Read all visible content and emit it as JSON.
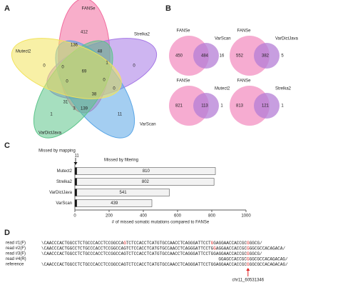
{
  "panel_labels": [
    "A",
    "B",
    "C",
    "D"
  ],
  "chart_data": [
    {
      "type": "venn",
      "sets": [
        {
          "name": "FANSe",
          "color": "#f26b9e"
        },
        {
          "name": "Strelka2",
          "color": "#a678e6"
        },
        {
          "name": "VarScan",
          "color": "#5aa6e6"
        },
        {
          "name": "VarDictJava",
          "color": "#5cc48a"
        },
        {
          "name": "Mutect2",
          "color": "#f2e35c"
        }
      ],
      "values": [
        412,
        136,
        48,
        0,
        0,
        1,
        0,
        0,
        0,
        69,
        38,
        31,
        3,
        139,
        1,
        11,
        0
      ]
    },
    {
      "type": "venn",
      "sets": [
        {
          "name": "FANSe",
          "color": "#f5a3cc"
        },
        {
          "name": "VarScan",
          "color": "#b47ed6"
        }
      ],
      "values": [
        450,
        484,
        16
      ]
    },
    {
      "type": "venn",
      "sets": [
        {
          "name": "FANSe",
          "color": "#f5a3cc"
        },
        {
          "name": "VarDictJava",
          "color": "#b47ed6"
        }
      ],
      "values": [
        552,
        382,
        5
      ]
    },
    {
      "type": "venn",
      "sets": [
        {
          "name": "FANSe",
          "color": "#f5a3cc"
        },
        {
          "name": "Mutect2",
          "color": "#b47ed6"
        }
      ],
      "values": [
        821,
        113,
        1
      ]
    },
    {
      "type": "venn",
      "sets": [
        {
          "name": "FANSe",
          "color": "#f5a3cc"
        },
        {
          "name": "Strelka2",
          "color": "#b47ed6"
        }
      ],
      "values": [
        813,
        121,
        1
      ]
    },
    {
      "type": "bar",
      "orientation": "horizontal",
      "stacked": true,
      "categories": [
        "Mutect2",
        "Strelka2",
        "VarDictJava",
        "VarScan"
      ],
      "series": [
        {
          "name": "Missed by mapping",
          "color": "#111111",
          "values": [
            11,
            11,
            11,
            11
          ]
        },
        {
          "name": "Missed by filtering",
          "color": "#f2f2f2",
          "values": [
            810,
            802,
            541,
            439
          ]
        }
      ],
      "xlim": [
        0,
        1000
      ],
      "xticks": [
        0,
        200,
        400,
        600,
        800,
        1000
      ],
      "xlabel": "# of missed somatic mutations compared to FANSe"
    }
  ],
  "alignment": {
    "rows": [
      {
        "label": "read #1(F)",
        "segments": [
          {
            "text": "\\CAACCCACTGGCCTCTGCCCACCTCCGGCCA",
            "color": "#222222"
          },
          {
            "text": "G",
            "color": "#e02020"
          },
          {
            "text": "TCTCCACCTCATGTGCCAACCTCAGGGATTCCT",
            "color": "#222222"
          },
          {
            "text": "G",
            "color": "#e02020"
          },
          {
            "text": "GAGGAACCACCGC",
            "color": "#222222"
          },
          {
            "text": "G",
            "color": "#e02020"
          },
          {
            "text": "GGCG/",
            "color": "#222222"
          }
        ]
      },
      {
        "label": "read #2(F)",
        "segments": [
          {
            "text": "\\CAACCCACTGGCCTCTGCCCACCTCCGGCCAGTCTCCACCTCATGTGCCAACCTCAGGGATTCCTG",
            "color": "#222222"
          },
          {
            "text": "G",
            "color": "#e02020"
          },
          {
            "text": "AGGAACCACCGC",
            "color": "#222222"
          },
          {
            "text": "G",
            "color": "#e02020"
          },
          {
            "text": "GGCGCCACAGACA/",
            "color": "#222222"
          }
        ]
      },
      {
        "label": "read #3(F)",
        "segments": [
          {
            "text": "\\CAACCCACTGGCCTCTGCCCACCTCCGGCCAGTCTCCACCTCATGTGCCAACCTCAGGGATTCCTGGAGGAACCACCGC",
            "color": "#222222"
          },
          {
            "text": "G",
            "color": "#e02020"
          },
          {
            "text": "GGCG/",
            "color": "#222222"
          }
        ]
      },
      {
        "label": "read #4(R)",
        "segments": [
          {
            "text": "GGAGCCACCGC",
            "color": "#222222"
          },
          {
            "text": "G",
            "color": "#e02020"
          },
          {
            "text": "GGCGCCACAGACAG/",
            "color": "#222222"
          }
        ]
      },
      {
        "label": "reference",
        "segments": [
          {
            "text": "\\CAACCCACTGGCCTCTGCCCACCTCCGGCCAGTCTCCACCTCATGTGCCAACCTCAGGGATTCCTGGAGGAACCACCGC",
            "color": "#222222"
          },
          {
            "text": "G",
            "color": "#e02020"
          },
          {
            "text": "GGCGCCACAGACAG/",
            "color": "#222222"
          }
        ]
      }
    ],
    "site_label": "chr11_60531346"
  }
}
